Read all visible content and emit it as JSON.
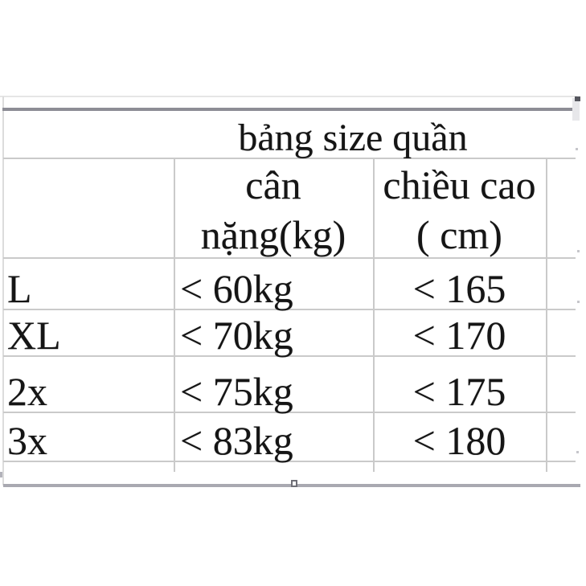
{
  "colors": {
    "table_border_thick": "#8d8d95",
    "table_border_bottom": "#a9a9b1",
    "table_border_light": "#cacaca",
    "text": "#151515",
    "background": "#ffffff"
  },
  "table": {
    "title": "bảng size quần",
    "headers": {
      "size": "",
      "weight_line1": "cân",
      "weight_line2": "nặng(kg)",
      "height_line1": "chiều cao",
      "height_line2": "( cm)"
    },
    "rows": [
      {
        "size": "L",
        "weight": "< 60kg",
        "height": "< 165"
      },
      {
        "size": "XL",
        "weight": "< 70kg",
        "height": "< 170"
      },
      {
        "size": "2x",
        "weight": "< 75kg",
        "height": "< 175"
      },
      {
        "size": "3x",
        "weight": "< 83kg",
        "height": "< 180"
      }
    ]
  }
}
